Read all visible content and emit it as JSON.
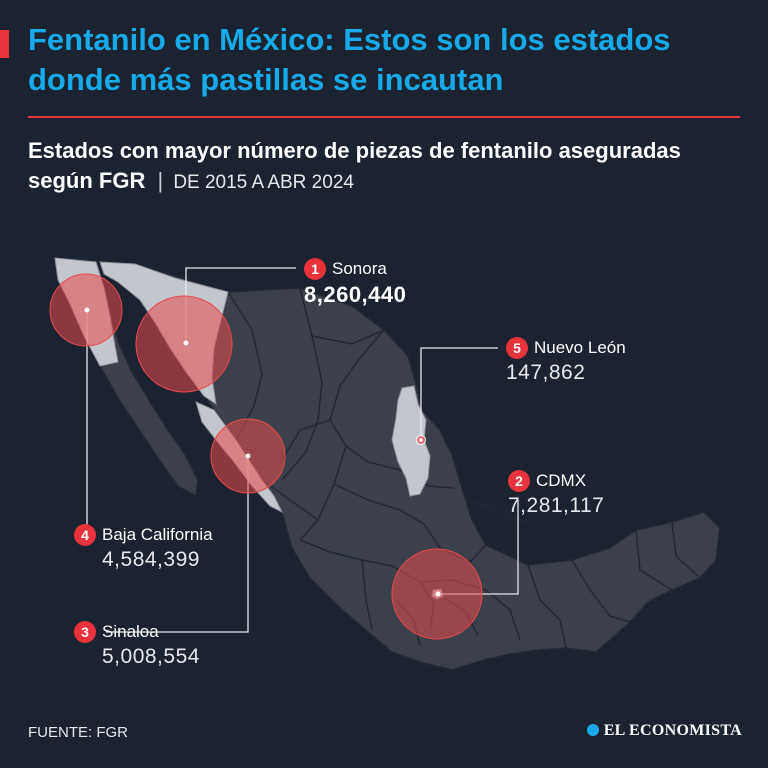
{
  "header": {
    "title": "Fentanilo en México: Estos son los estados donde más pastillas se incautan",
    "subtitle": "Estados con mayor número de piezas de fentanilo aseguradas según FGR",
    "separator": "|",
    "period": "DE 2015 A ABR 2024"
  },
  "colors": {
    "background": "#1b2230",
    "title": "#17a9e8",
    "accent": "#e8323c",
    "state_default": "#3b404a",
    "state_highlight": "#c3c6cc",
    "bubble": "#e84a4f"
  },
  "states": [
    {
      "rank": "1",
      "name": "Sonora",
      "value": "8,260,440"
    },
    {
      "rank": "2",
      "name": "CDMX",
      "value": "7,281,117"
    },
    {
      "rank": "3",
      "name": "Sinaloa",
      "value": "5,008,554"
    },
    {
      "rank": "4",
      "name": "Baja California",
      "value": "4,584,399"
    },
    {
      "rank": "5",
      "name": "Nuevo León",
      "value": "147,862"
    }
  ],
  "footer": {
    "source": "FUENTE: FGR",
    "brand": "EL ECONOMISTA"
  }
}
